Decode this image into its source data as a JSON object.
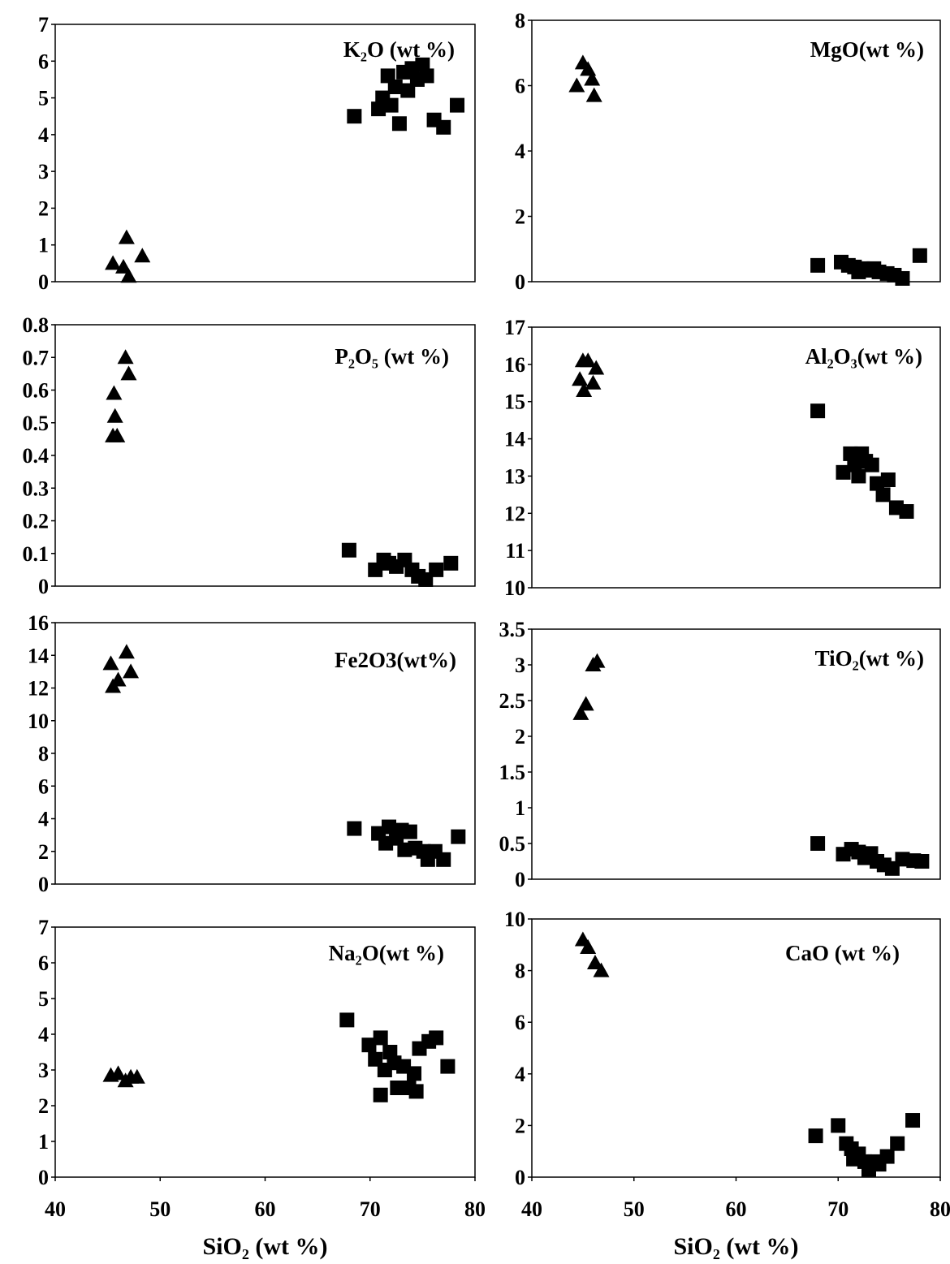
{
  "chart_data": [
    {
      "type": "scatter",
      "title": "K₂O (wt %)",
      "xlabel": "",
      "ylabel": "",
      "xlim": [
        40,
        80
      ],
      "ylim": [
        0,
        7
      ],
      "xticks": [],
      "yticks": [
        0,
        1,
        2,
        3,
        4,
        5,
        6,
        7
      ],
      "grid": false,
      "legend": "none",
      "series": [
        {
          "marker": "triangle",
          "points": [
            [
              45.5,
              0.5
            ],
            [
              46.8,
              1.2
            ],
            [
              47.0,
              0.15
            ],
            [
              48.3,
              0.7
            ],
            [
              46.5,
              0.4
            ]
          ]
        },
        {
          "marker": "square",
          "points": [
            [
              68.5,
              4.5
            ],
            [
              70.8,
              4.7
            ],
            [
              71.2,
              5.0
            ],
            [
              71.7,
              5.6
            ],
            [
              72.0,
              4.8
            ],
            [
              72.4,
              5.3
            ],
            [
              72.8,
              4.3
            ],
            [
              73.2,
              5.7
            ],
            [
              73.6,
              5.2
            ],
            [
              74.0,
              5.8
            ],
            [
              74.5,
              5.5
            ],
            [
              75.0,
              5.9
            ],
            [
              75.4,
              5.6
            ],
            [
              76.1,
              4.4
            ],
            [
              77.0,
              4.2
            ],
            [
              78.3,
              4.8
            ]
          ]
        }
      ]
    },
    {
      "type": "scatter",
      "title": "MgO(wt %)",
      "xlabel": "",
      "ylabel": "",
      "xlim": [
        40,
        80
      ],
      "ylim": [
        0,
        8
      ],
      "xticks": [],
      "yticks": [
        0,
        2,
        4,
        6,
        8
      ],
      "grid": false,
      "legend": "none",
      "series": [
        {
          "marker": "triangle",
          "points": [
            [
              44.4,
              6.0
            ],
            [
              45.0,
              6.7
            ],
            [
              45.5,
              6.5
            ],
            [
              45.9,
              6.2
            ],
            [
              46.1,
              5.7
            ]
          ]
        },
        {
          "marker": "square",
          "points": [
            [
              68.0,
              0.5
            ],
            [
              70.3,
              0.6
            ],
            [
              71.0,
              0.5
            ],
            [
              71.6,
              0.45
            ],
            [
              72.0,
              0.3
            ],
            [
              72.4,
              0.4
            ],
            [
              72.9,
              0.35
            ],
            [
              73.5,
              0.4
            ],
            [
              74.0,
              0.3
            ],
            [
              74.8,
              0.25
            ],
            [
              75.5,
              0.2
            ],
            [
              76.3,
              0.1
            ],
            [
              78.0,
              0.8
            ]
          ]
        }
      ]
    },
    {
      "type": "scatter",
      "title": "P₂O₅ (wt %)",
      "xlabel": "",
      "ylabel": "",
      "xlim": [
        40,
        80
      ],
      "ylim": [
        0,
        0.8
      ],
      "xticks": [],
      "yticks": [
        0,
        0.1,
        0.2,
        0.3,
        0.4,
        0.5,
        0.6,
        0.7,
        0.8
      ],
      "grid": false,
      "legend": "none",
      "series": [
        {
          "marker": "triangle",
          "points": [
            [
              45.5,
              0.46
            ],
            [
              45.9,
              0.46
            ],
            [
              45.7,
              0.52
            ],
            [
              45.6,
              0.59
            ],
            [
              46.7,
              0.7
            ],
            [
              47.0,
              0.65
            ]
          ]
        },
        {
          "marker": "square",
          "points": [
            [
              68.0,
              0.11
            ],
            [
              70.5,
              0.05
            ],
            [
              71.3,
              0.08
            ],
            [
              71.8,
              0.07
            ],
            [
              72.5,
              0.06
            ],
            [
              73.3,
              0.08
            ],
            [
              74.0,
              0.05
            ],
            [
              74.6,
              0.03
            ],
            [
              75.3,
              0.02
            ],
            [
              76.3,
              0.05
            ],
            [
              77.7,
              0.07
            ]
          ]
        }
      ]
    },
    {
      "type": "scatter",
      "title": "Al₂O₃(wt %)",
      "xlabel": "",
      "ylabel": "",
      "xlim": [
        40,
        80
      ],
      "ylim": [
        10,
        17
      ],
      "xticks": [],
      "yticks": [
        10,
        11,
        12,
        13,
        14,
        15,
        16,
        17
      ],
      "grid": false,
      "legend": "none",
      "series": [
        {
          "marker": "triangle",
          "points": [
            [
              44.7,
              15.6
            ],
            [
              45.0,
              16.1
            ],
            [
              45.5,
              16.1
            ],
            [
              45.1,
              15.3
            ],
            [
              46.0,
              15.5
            ],
            [
              46.3,
              15.9
            ]
          ]
        },
        {
          "marker": "square",
          "points": [
            [
              68.0,
              14.75
            ],
            [
              70.5,
              13.1
            ],
            [
              71.2,
              13.6
            ],
            [
              71.6,
              13.3
            ],
            [
              72.0,
              13.0
            ],
            [
              72.3,
              13.6
            ],
            [
              72.7,
              13.4
            ],
            [
              73.3,
              13.3
            ],
            [
              73.8,
              12.8
            ],
            [
              74.4,
              12.5
            ],
            [
              74.9,
              12.9
            ],
            [
              75.7,
              12.15
            ],
            [
              76.7,
              12.05
            ]
          ]
        }
      ]
    },
    {
      "type": "scatter",
      "title": "Fe2O3(wt%)",
      "xlabel": "",
      "ylabel": "",
      "xlim": [
        40,
        80
      ],
      "ylim": [
        0,
        16
      ],
      "xticks": [],
      "yticks": [
        0,
        2,
        4,
        6,
        8,
        10,
        12,
        14,
        16
      ],
      "grid": false,
      "legend": "none",
      "series": [
        {
          "marker": "triangle",
          "points": [
            [
              45.5,
              12.1
            ],
            [
              45.3,
              13.5
            ],
            [
              46.0,
              12.5
            ],
            [
              46.8,
              14.2
            ],
            [
              47.2,
              13.0
            ]
          ]
        },
        {
          "marker": "square",
          "points": [
            [
              68.5,
              3.4
            ],
            [
              70.8,
              3.1
            ],
            [
              71.5,
              2.5
            ],
            [
              71.8,
              3.5
            ],
            [
              72.5,
              2.8
            ],
            [
              73.0,
              3.3
            ],
            [
              73.3,
              2.1
            ],
            [
              73.8,
              3.2
            ],
            [
              74.3,
              2.2
            ],
            [
              75.1,
              2.0
            ],
            [
              75.5,
              1.5
            ],
            [
              76.2,
              2.0
            ],
            [
              77.0,
              1.5
            ],
            [
              78.4,
              2.9
            ]
          ]
        }
      ]
    },
    {
      "type": "scatter",
      "title": "TiO₂(wt %)",
      "xlabel": "",
      "ylabel": "",
      "xlim": [
        40,
        80
      ],
      "ylim": [
        0,
        3.5
      ],
      "xticks": [],
      "yticks": [
        0,
        0.5,
        1,
        1.5,
        2,
        2.5,
        3,
        3.5
      ],
      "grid": false,
      "legend": "none",
      "series": [
        {
          "marker": "triangle",
          "points": [
            [
              44.8,
              2.32
            ],
            [
              45.3,
              2.45
            ],
            [
              46.0,
              3.0
            ],
            [
              46.4,
              3.05
            ]
          ]
        },
        {
          "marker": "square",
          "points": [
            [
              68.0,
              0.5
            ],
            [
              70.5,
              0.35
            ],
            [
              71.3,
              0.42
            ],
            [
              72.0,
              0.38
            ],
            [
              72.6,
              0.3
            ],
            [
              73.2,
              0.36
            ],
            [
              73.8,
              0.25
            ],
            [
              74.5,
              0.2
            ],
            [
              75.3,
              0.15
            ],
            [
              76.3,
              0.28
            ],
            [
              77.4,
              0.26
            ],
            [
              78.2,
              0.25
            ]
          ]
        }
      ]
    },
    {
      "type": "scatter",
      "title": "Na₂O(wt %)",
      "xlabel": "SiO₂ (wt %)",
      "ylabel": "",
      "xlim": [
        40,
        80
      ],
      "ylim": [
        0,
        7
      ],
      "xticks": [
        40,
        50,
        60,
        70,
        80
      ],
      "yticks": [
        0,
        1,
        2,
        3,
        4,
        5,
        6,
        7
      ],
      "grid": false,
      "legend": "none",
      "series": [
        {
          "marker": "triangle",
          "points": [
            [
              45.3,
              2.85
            ],
            [
              46.0,
              2.9
            ],
            [
              46.7,
              2.7
            ],
            [
              47.2,
              2.8
            ],
            [
              47.8,
              2.8
            ]
          ]
        },
        {
          "marker": "square",
          "points": [
            [
              67.8,
              4.4
            ],
            [
              69.9,
              3.7
            ],
            [
              70.5,
              3.3
            ],
            [
              71.0,
              3.9
            ],
            [
              71.0,
              2.3
            ],
            [
              71.4,
              3.0
            ],
            [
              71.9,
              3.5
            ],
            [
              72.3,
              3.2
            ],
            [
              72.6,
              2.5
            ],
            [
              73.2,
              3.1
            ],
            [
              73.7,
              2.5
            ],
            [
              74.2,
              2.9
            ],
            [
              74.4,
              2.4
            ],
            [
              74.7,
              3.6
            ],
            [
              75.6,
              3.8
            ],
            [
              76.3,
              3.9
            ],
            [
              77.4,
              3.1
            ]
          ]
        }
      ]
    },
    {
      "type": "scatter",
      "title": "CaO (wt %)",
      "xlabel": "SiO₂ (wt %)",
      "ylabel": "",
      "xlim": [
        40,
        80
      ],
      "ylim": [
        0,
        10
      ],
      "xticks": [
        40,
        50,
        60,
        70,
        80
      ],
      "yticks": [
        0,
        2,
        4,
        6,
        8,
        10
      ],
      "grid": false,
      "legend": "none",
      "series": [
        {
          "marker": "triangle",
          "points": [
            [
              45.0,
              9.2
            ],
            [
              45.5,
              8.9
            ],
            [
              46.2,
              8.3
            ],
            [
              46.8,
              8.0
            ]
          ]
        },
        {
          "marker": "square",
          "points": [
            [
              67.8,
              1.6
            ],
            [
              70.0,
              2.0
            ],
            [
              70.8,
              1.3
            ],
            [
              71.3,
              1.1
            ],
            [
              71.5,
              0.7
            ],
            [
              72.0,
              0.9
            ],
            [
              72.6,
              0.6
            ],
            [
              73.0,
              0.3
            ],
            [
              73.6,
              0.6
            ],
            [
              74.0,
              0.5
            ],
            [
              74.8,
              0.8
            ],
            [
              75.8,
              1.3
            ],
            [
              77.3,
              2.2
            ]
          ]
        }
      ]
    }
  ]
}
